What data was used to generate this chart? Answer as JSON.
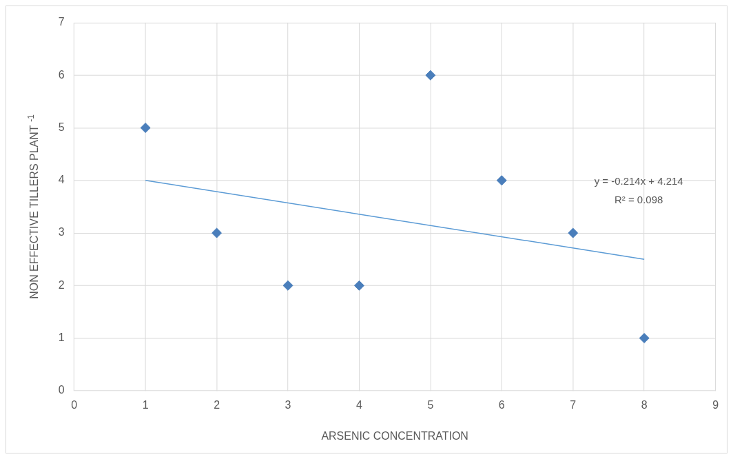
{
  "chart_data": {
    "type": "scatter",
    "xlabel": "ARSENIC CONCENTRATION",
    "ylabel": "NON EFFECTIVE TILLERS PLANT $^{-1}$",
    "x": [
      1,
      2,
      3,
      4,
      5,
      6,
      7,
      8
    ],
    "series": [
      {
        "type": "scatter",
        "color": "#4a7ebb",
        "values": [
          5,
          3,
          2,
          2,
          6,
          4,
          3,
          1
        ]
      },
      {
        "type": "line",
        "x": [
          1,
          8
        ],
        "values": [
          4,
          2.5
        ],
        "color": "#5b9bd5",
        "marker": "none"
      }
    ],
    "annotations": [
      "y = -0.214x + 4.214",
      "R² = 0.098"
    ],
    "xlim": [
      0,
      9
    ],
    "xticks": [
      0,
      1,
      2,
      3,
      4,
      5,
      6,
      7,
      8,
      9
    ],
    "ylim": [
      0,
      7
    ],
    "yticks": [
      0,
      1,
      2,
      3,
      4,
      5,
      6,
      7
    ],
    "grid": true,
    "legend": false,
    "marker": "diamond"
  }
}
